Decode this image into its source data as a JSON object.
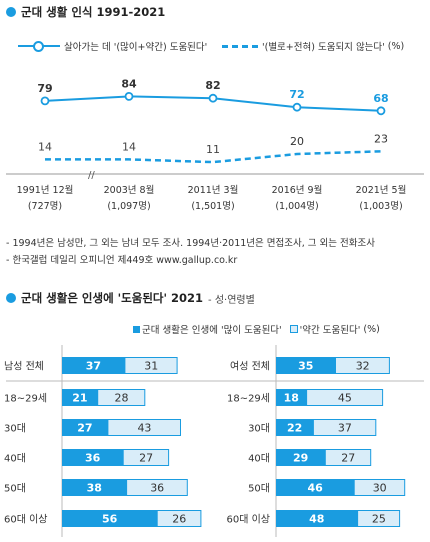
{
  "section1": {
    "title": "군대 생활 인식 1991-2021"
  },
  "section2": {
    "title": "군대 생활은 인생에 '도움된다' 2021",
    "subtitle": "- 성·연령별"
  },
  "notes": [
    "- 1994년은 남성만, 그 외는 남녀 모두 조사. 1994년·2011년은 면접조사, 그 외는 전화조사",
    "- 한국갤럽 데일리 오피니언 제449호 www.gallup.co.kr"
  ],
  "colors": {
    "accent": "#1a9ce0",
    "light": "#d9edf9",
    "dark": "#333333"
  },
  "chart_data": [
    {
      "type": "line",
      "title": "군대 생활 인식 1991-2021",
      "unit": "(%)",
      "categories": [
        "1991년 12월",
        "2003년 8월",
        "2011년 3월",
        "2016년 9월",
        "2021년 5월"
      ],
      "sample_sizes": [
        "(727명)",
        "(1,097명)",
        "(1,501명)",
        "(1,004명)",
        "(1,003명)"
      ],
      "axis_break": "//",
      "series": [
        {
          "name": "살아가는 데 '(많이+약간) 도움된다'",
          "values": [
            79,
            84,
            82,
            72,
            68
          ],
          "style": "solid"
        },
        {
          "name": "'(별로+전혀) 도움되지 않는다'",
          "values": [
            14,
            14,
            11,
            20,
            23
          ],
          "style": "dashed"
        }
      ],
      "ylim": [
        0,
        100
      ]
    },
    {
      "type": "bar",
      "stacked": true,
      "title": "군대 생활은 인생에 '도움된다' 2021",
      "unit": "(%)",
      "series_names": [
        "군대 생활은 인생에 '많이 도움된다'",
        "'약간 도움된다'"
      ],
      "groups": [
        {
          "categories": [
            "남성 전체",
            "18~29세",
            "30대",
            "40대",
            "50대",
            "60대 이상"
          ],
          "many": [
            37,
            21,
            27,
            36,
            38,
            56
          ],
          "some": [
            31,
            28,
            43,
            27,
            36,
            26
          ]
        },
        {
          "categories": [
            "여성 전체",
            "18~29세",
            "30대",
            "40대",
            "50대",
            "60대 이상"
          ],
          "many": [
            35,
            18,
            22,
            29,
            46,
            48
          ],
          "some": [
            32,
            45,
            37,
            27,
            30,
            25
          ]
        }
      ],
      "xlim": [
        0,
        100
      ]
    }
  ]
}
